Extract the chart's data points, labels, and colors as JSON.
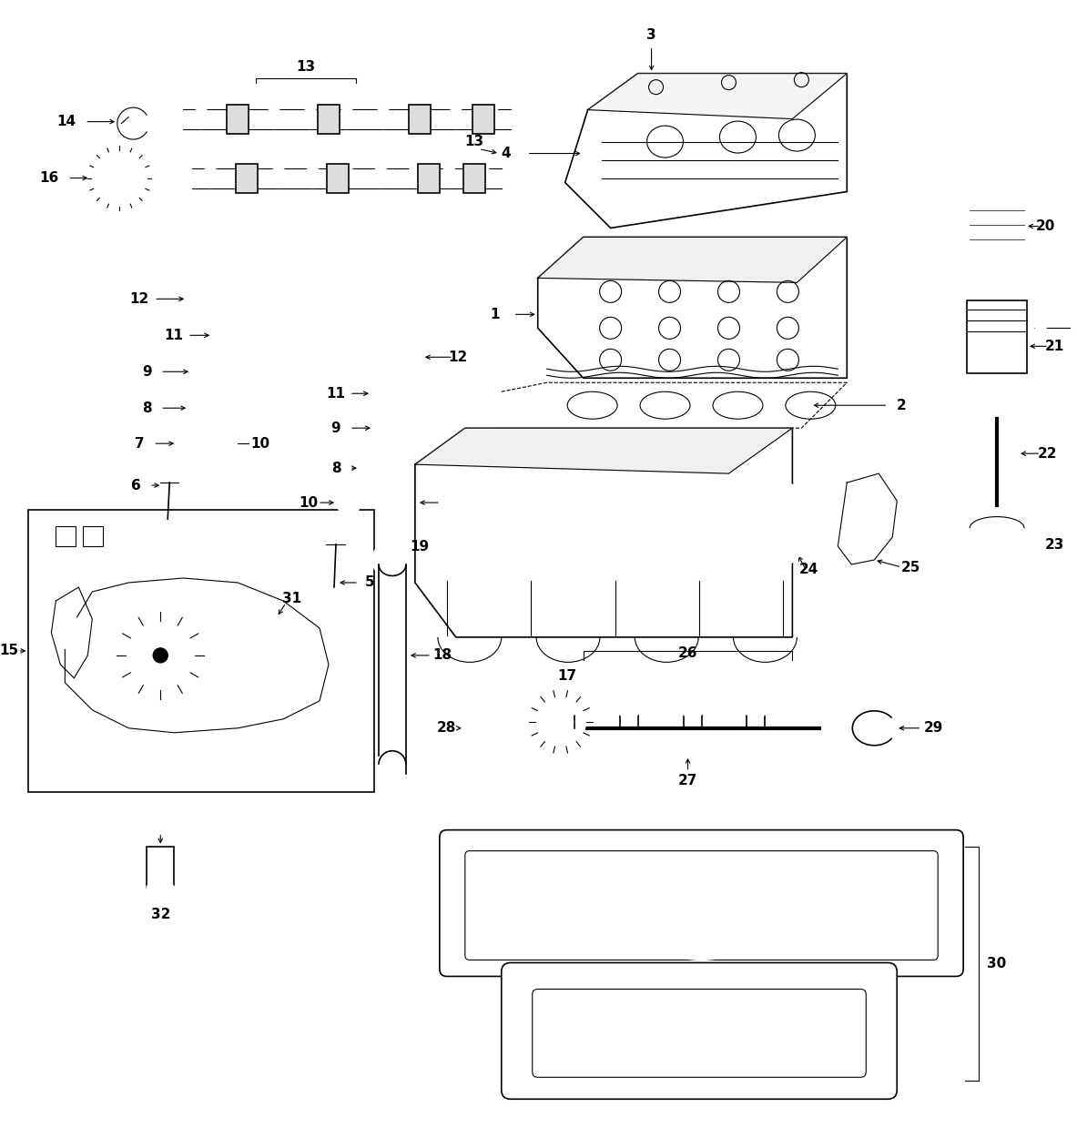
{
  "background_color": "#ffffff",
  "line_color": "#000000",
  "lw_thin": 0.8,
  "lw_med": 1.2,
  "lw_thick": 1.8,
  "label_fontsize": 11,
  "figw": 11.83,
  "figh": 12.5,
  "dpi": 100
}
